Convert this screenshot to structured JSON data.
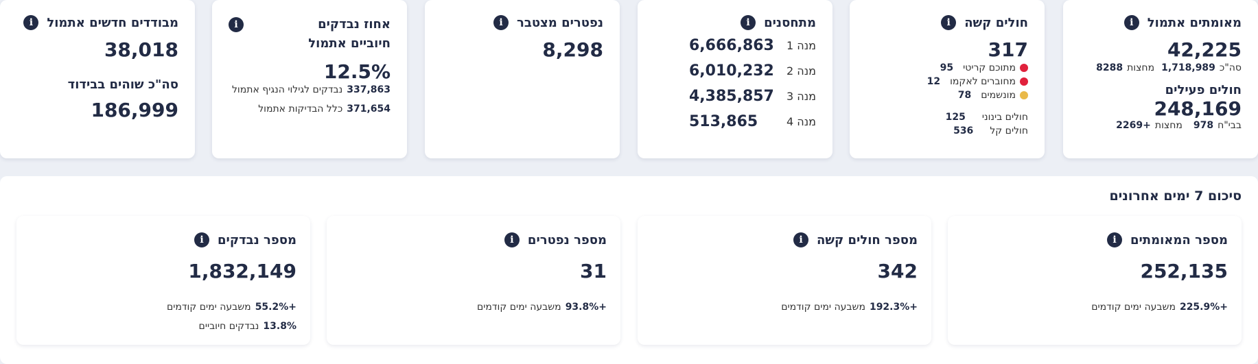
{
  "card_confirmed": {
    "title": "מאומתים אתמול",
    "value": "42,225",
    "total_label": "סה\"כ",
    "total_value": "1,718,989",
    "wards_label": "מחצות",
    "wards_value": "8288",
    "active_title": "חולים פעילים",
    "active_value": "248,169",
    "hosp_label": "בבי\"ח",
    "hosp_value": "978",
    "since_label": "מחצות",
    "since_value": "+2269"
  },
  "card_serious": {
    "title": "חולים קשה",
    "value": "317",
    "critical_label": "מתוכם קריטי",
    "critical_value": "95",
    "ecmo_label": "מחוברים לאקמו",
    "ecmo_value": "12",
    "vent_label": "מונשמים",
    "vent_value": "78",
    "moderate_label": "חולים בינוני",
    "moderate_value": "125",
    "mild_label": "חולים קל",
    "mild_value": "536",
    "colors": {
      "critical": "#e0213c",
      "ecmo": "#e0213c",
      "vent": "#e9b949"
    }
  },
  "card_vaccinated": {
    "title": "מתחסנים",
    "doses": [
      {
        "label": "מנה 1",
        "value": "6,666,863"
      },
      {
        "label": "מנה 2",
        "value": "6,010,232"
      },
      {
        "label": "מנה 3",
        "value": "4,385,857"
      },
      {
        "label": "מנה 4",
        "value": "513,865"
      }
    ]
  },
  "card_deaths": {
    "title": "נפטרים מצטבר",
    "value": "8,298"
  },
  "card_positive_rate": {
    "title": "אחוז נבדקים חיוביים אתמול",
    "value": "12.5%",
    "tested_value": "337,863",
    "tested_label": "נבדקים לגילוי הנגיף אתמול",
    "all_tests_value": "371,654",
    "all_tests_label": "כלל הבדיקות אתמול"
  },
  "card_isolation": {
    "title": "מבודדים חדשים אתמול",
    "value": "38,018",
    "total_title": "סה\"כ שוהים בבידוד",
    "total_value": "186,999"
  },
  "summary": {
    "title": "סיכום 7 ימים אחרונים",
    "cards": [
      {
        "title": "מספר המאומתים",
        "value": "252,135",
        "change": "+225.9%",
        "change_label": "משבעה ימים קודמים"
      },
      {
        "title": "מספר חולים קשה",
        "value": "342",
        "change": "+192.3%",
        "change_label": "משבעה ימים קודמים"
      },
      {
        "title": "מספר נפטרים",
        "value": "31",
        "change": "+93.8%",
        "change_label": "משבעה ימים קודמים"
      },
      {
        "title": "מספר נבדקים",
        "value": "1,832,149",
        "change": "+55.2%",
        "change_label": "משבעה ימים קודמים",
        "positive_value": "13.8%",
        "positive_label": "נבדקים חיוביים"
      }
    ]
  },
  "info_glyph": "i"
}
